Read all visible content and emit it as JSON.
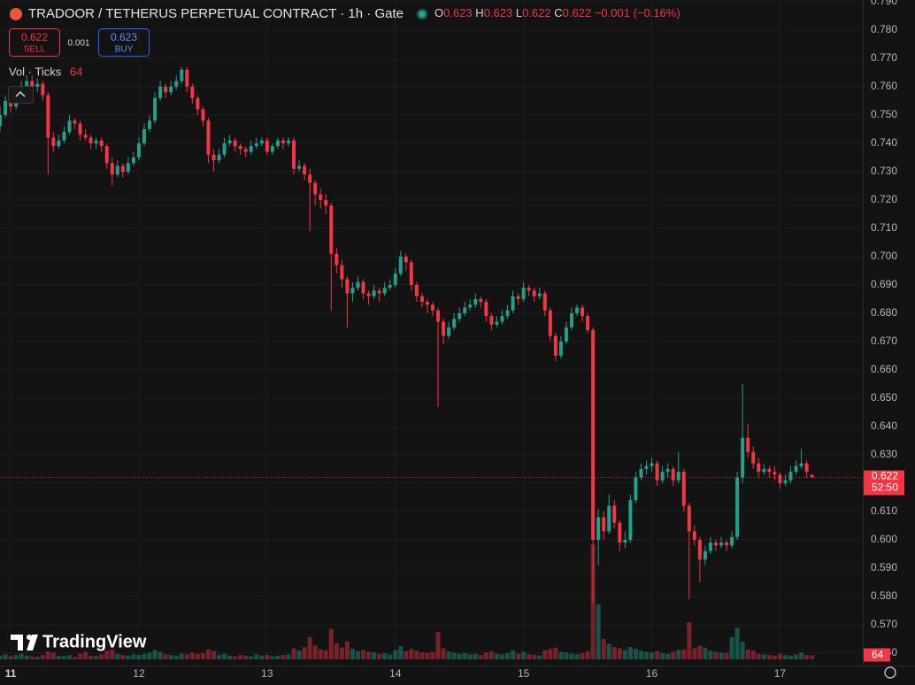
{
  "chart_data": {
    "type": "candlestick",
    "title": "TRADOOR / TETHERUS PERPETUAL CONTRACT · 1h · Gate",
    "legend_letters": [
      "O",
      "H",
      "L",
      "C"
    ],
    "change": "−0.001 (−0.16%)",
    "sell_price": 0.622,
    "sell_label": "SELL",
    "spread": 0.001,
    "buy_price": 0.623,
    "buy_label": "BUY",
    "volume_title": "Vol · Ticks",
    "brand": "TradingView",
    "last_price": 0.622,
    "countdown": "52:50",
    "up_color": "#22a08c",
    "down_color": "#f23645",
    "grid": true,
    "xlim": [
      -2,
      159.5
    ],
    "xticks": [
      {
        "value": 0,
        "label": "11"
      },
      {
        "value": 24,
        "label": "12"
      },
      {
        "value": 48,
        "label": "13"
      },
      {
        "value": 72,
        "label": "14"
      },
      {
        "value": 96,
        "label": "15"
      },
      {
        "value": 120,
        "label": "16"
      },
      {
        "value": 144,
        "label": "17"
      }
    ],
    "ylim": [
      0.5556,
      0.7906
    ],
    "yticks": [
      {
        "value": 0.56,
        "label": "0.560"
      },
      {
        "value": 0.57,
        "label": "0.570"
      },
      {
        "value": 0.58,
        "label": "0.580"
      },
      {
        "value": 0.59,
        "label": "0.590"
      },
      {
        "value": 0.6,
        "label": "0.600"
      },
      {
        "value": 0.61,
        "label": "0.610"
      },
      {
        "value": 0.62,
        "label": "0.620"
      },
      {
        "value": 0.63,
        "label": "0.630"
      },
      {
        "value": 0.64,
        "label": "0.640"
      },
      {
        "value": 0.65,
        "label": "0.650"
      },
      {
        "value": 0.66,
        "label": "0.660"
      },
      {
        "value": 0.67,
        "label": "0.670"
      },
      {
        "value": 0.68,
        "label": "0.680"
      },
      {
        "value": 0.69,
        "label": "0.690"
      },
      {
        "value": 0.7,
        "label": "0.700"
      },
      {
        "value": 0.71,
        "label": "0.710"
      },
      {
        "value": 0.72,
        "label": "0.720"
      },
      {
        "value": 0.73,
        "label": "0.730"
      },
      {
        "value": 0.74,
        "label": "0.740"
      },
      {
        "value": 0.75,
        "label": "0.750"
      },
      {
        "value": 0.76,
        "label": "0.760"
      },
      {
        "value": 0.77,
        "label": "0.770"
      },
      {
        "value": 0.78,
        "label": "0.780"
      },
      {
        "value": 0.79,
        "label": "0.790"
      }
    ],
    "y2lim": [
      0,
      2000
    ],
    "x": [
      -2,
      -1,
      0,
      1,
      2,
      3,
      4,
      5,
      6,
      7,
      8,
      9,
      10,
      11,
      12,
      13,
      14,
      15,
      16,
      17,
      18,
      19,
      20,
      21,
      22,
      23,
      24,
      25,
      26,
      27,
      28,
      29,
      30,
      31,
      32,
      33,
      34,
      35,
      36,
      37,
      38,
      39,
      40,
      41,
      42,
      43,
      44,
      45,
      46,
      47,
      48,
      49,
      50,
      51,
      52,
      53,
      54,
      55,
      56,
      57,
      58,
      59,
      60,
      61,
      62,
      63,
      64,
      65,
      66,
      67,
      68,
      69,
      70,
      71,
      72,
      73,
      74,
      75,
      76,
      77,
      78,
      79,
      80,
      81,
      82,
      83,
      84,
      85,
      86,
      87,
      88,
      89,
      90,
      91,
      92,
      93,
      94,
      95,
      96,
      97,
      98,
      99,
      100,
      101,
      102,
      103,
      104,
      105,
      106,
      107,
      108,
      109,
      110,
      111,
      112,
      113,
      114,
      115,
      116,
      117,
      118,
      119,
      120,
      121,
      122,
      123,
      124,
      125,
      126,
      127,
      128,
      129,
      130,
      131,
      132,
      133,
      134,
      135,
      136,
      137,
      138,
      139,
      140,
      141,
      142,
      143,
      144,
      145,
      146,
      147,
      148,
      149,
      150
    ],
    "candles": [
      [
        0.746,
        0.753,
        0.744,
        0.75
      ],
      [
        0.75,
        0.757,
        0.749,
        0.755
      ],
      [
        0.755,
        0.758,
        0.751,
        0.753
      ],
      [
        0.753,
        0.76,
        0.752,
        0.758
      ],
      [
        0.758,
        0.762,
        0.756,
        0.76
      ],
      [
        0.76,
        0.764,
        0.758,
        0.762
      ],
      [
        0.762,
        0.764,
        0.758,
        0.76
      ],
      [
        0.76,
        0.763,
        0.758,
        0.761
      ],
      [
        0.761,
        0.762,
        0.755,
        0.757
      ],
      [
        0.757,
        0.758,
        0.729,
        0.742
      ],
      [
        0.742,
        0.744,
        0.737,
        0.739
      ],
      [
        0.739,
        0.743,
        0.738,
        0.741
      ],
      [
        0.741,
        0.746,
        0.74,
        0.744
      ],
      [
        0.744,
        0.75,
        0.743,
        0.748
      ],
      [
        0.748,
        0.749,
        0.745,
        0.747
      ],
      [
        0.747,
        0.748,
        0.741,
        0.743
      ],
      [
        0.743,
        0.745,
        0.741,
        0.742
      ],
      [
        0.742,
        0.743,
        0.738,
        0.74
      ],
      [
        0.74,
        0.742,
        0.738,
        0.741
      ],
      [
        0.741,
        0.742,
        0.737,
        0.739
      ],
      [
        0.739,
        0.74,
        0.731,
        0.733
      ],
      [
        0.733,
        0.735,
        0.725,
        0.729
      ],
      [
        0.729,
        0.734,
        0.728,
        0.732
      ],
      [
        0.732,
        0.733,
        0.728,
        0.73
      ],
      [
        0.73,
        0.735,
        0.729,
        0.733
      ],
      [
        0.733,
        0.737,
        0.732,
        0.735
      ],
      [
        0.735,
        0.742,
        0.734,
        0.74
      ],
      [
        0.74,
        0.747,
        0.739,
        0.745
      ],
      [
        0.745,
        0.75,
        0.744,
        0.748
      ],
      [
        0.748,
        0.758,
        0.747,
        0.756
      ],
      [
        0.756,
        0.762,
        0.755,
        0.76
      ],
      [
        0.76,
        0.761,
        0.756,
        0.758
      ],
      [
        0.758,
        0.762,
        0.757,
        0.76
      ],
      [
        0.76,
        0.764,
        0.759,
        0.762
      ],
      [
        0.762,
        0.767,
        0.761,
        0.766
      ],
      [
        0.766,
        0.767,
        0.758,
        0.76
      ],
      [
        0.76,
        0.761,
        0.754,
        0.756
      ],
      [
        0.756,
        0.757,
        0.75,
        0.752
      ],
      [
        0.752,
        0.753,
        0.746,
        0.748
      ],
      [
        0.748,
        0.749,
        0.733,
        0.736
      ],
      [
        0.736,
        0.738,
        0.73,
        0.734
      ],
      [
        0.734,
        0.738,
        0.733,
        0.736
      ],
      [
        0.736,
        0.742,
        0.735,
        0.74
      ],
      [
        0.74,
        0.743,
        0.739,
        0.741
      ],
      [
        0.741,
        0.742,
        0.737,
        0.739
      ],
      [
        0.739,
        0.74,
        0.736,
        0.738
      ],
      [
        0.738,
        0.739,
        0.735,
        0.737
      ],
      [
        0.737,
        0.741,
        0.736,
        0.739
      ],
      [
        0.739,
        0.742,
        0.738,
        0.74
      ],
      [
        0.74,
        0.742,
        0.739,
        0.741
      ],
      [
        0.741,
        0.742,
        0.736,
        0.737
      ],
      [
        0.737,
        0.74,
        0.736,
        0.739
      ],
      [
        0.739,
        0.742,
        0.738,
        0.741
      ],
      [
        0.741,
        0.742,
        0.738,
        0.74
      ],
      [
        0.74,
        0.742,
        0.739,
        0.741
      ],
      [
        0.741,
        0.742,
        0.729,
        0.731
      ],
      [
        0.731,
        0.734,
        0.73,
        0.732
      ],
      [
        0.732,
        0.733,
        0.727,
        0.729
      ],
      [
        0.729,
        0.731,
        0.709,
        0.726
      ],
      [
        0.726,
        0.727,
        0.718,
        0.722
      ],
      [
        0.722,
        0.724,
        0.717,
        0.72
      ],
      [
        0.72,
        0.722,
        0.715,
        0.718
      ],
      [
        0.718,
        0.719,
        0.681,
        0.701
      ],
      [
        0.701,
        0.703,
        0.694,
        0.697
      ],
      [
        0.697,
        0.699,
        0.689,
        0.692
      ],
      [
        0.692,
        0.693,
        0.675,
        0.687
      ],
      [
        0.687,
        0.691,
        0.684,
        0.689
      ],
      [
        0.689,
        0.693,
        0.688,
        0.691
      ],
      [
        0.691,
        0.692,
        0.685,
        0.687
      ],
      [
        0.687,
        0.688,
        0.683,
        0.686
      ],
      [
        0.686,
        0.69,
        0.685,
        0.688
      ],
      [
        0.688,
        0.689,
        0.684,
        0.687
      ],
      [
        0.687,
        0.691,
        0.686,
        0.689
      ],
      [
        0.689,
        0.692,
        0.688,
        0.69
      ],
      [
        0.69,
        0.696,
        0.689,
        0.694
      ],
      [
        0.694,
        0.702,
        0.693,
        0.7
      ],
      [
        0.7,
        0.701,
        0.695,
        0.698
      ],
      [
        0.698,
        0.699,
        0.688,
        0.69
      ],
      [
        0.69,
        0.691,
        0.684,
        0.686
      ],
      [
        0.686,
        0.687,
        0.682,
        0.684
      ],
      [
        0.684,
        0.685,
        0.68,
        0.683
      ],
      [
        0.683,
        0.684,
        0.679,
        0.681
      ],
      [
        0.681,
        0.682,
        0.647,
        0.677
      ],
      [
        0.677,
        0.678,
        0.669,
        0.672
      ],
      [
        0.672,
        0.677,
        0.671,
        0.675
      ],
      [
        0.675,
        0.68,
        0.674,
        0.678
      ],
      [
        0.678,
        0.682,
        0.677,
        0.68
      ],
      [
        0.68,
        0.684,
        0.679,
        0.682
      ],
      [
        0.682,
        0.685,
        0.681,
        0.683
      ],
      [
        0.683,
        0.687,
        0.682,
        0.685
      ],
      [
        0.685,
        0.686,
        0.682,
        0.684
      ],
      [
        0.684,
        0.685,
        0.677,
        0.679
      ],
      [
        0.679,
        0.68,
        0.674,
        0.676
      ],
      [
        0.676,
        0.679,
        0.675,
        0.677
      ],
      [
        0.677,
        0.681,
        0.676,
        0.679
      ],
      [
        0.679,
        0.683,
        0.678,
        0.681
      ],
      [
        0.681,
        0.688,
        0.68,
        0.686
      ],
      [
        0.686,
        0.687,
        0.683,
        0.685
      ],
      [
        0.685,
        0.691,
        0.684,
        0.689
      ],
      [
        0.689,
        0.69,
        0.686,
        0.688
      ],
      [
        0.688,
        0.689,
        0.684,
        0.686
      ],
      [
        0.686,
        0.689,
        0.685,
        0.687
      ],
      [
        0.687,
        0.688,
        0.679,
        0.681
      ],
      [
        0.681,
        0.682,
        0.67,
        0.672
      ],
      [
        0.672,
        0.673,
        0.663,
        0.665
      ],
      [
        0.665,
        0.672,
        0.664,
        0.67
      ],
      [
        0.67,
        0.677,
        0.669,
        0.675
      ],
      [
        0.675,
        0.682,
        0.674,
        0.68
      ],
      [
        0.68,
        0.683,
        0.679,
        0.682
      ],
      [
        0.682,
        0.683,
        0.677,
        0.679
      ],
      [
        0.679,
        0.68,
        0.673,
        0.674
      ],
      [
        0.674,
        0.675,
        0.578,
        0.6
      ],
      [
        0.6,
        0.611,
        0.591,
        0.608
      ],
      [
        0.608,
        0.61,
        0.6,
        0.603
      ],
      [
        0.603,
        0.616,
        0.602,
        0.612
      ],
      [
        0.612,
        0.614,
        0.604,
        0.606
      ],
      [
        0.606,
        0.607,
        0.596,
        0.599
      ],
      [
        0.599,
        0.603,
        0.597,
        0.6
      ],
      [
        0.6,
        0.616,
        0.599,
        0.614
      ],
      [
        0.614,
        0.624,
        0.613,
        0.622
      ],
      [
        0.622,
        0.627,
        0.621,
        0.625
      ],
      [
        0.625,
        0.628,
        0.623,
        0.626
      ],
      [
        0.626,
        0.629,
        0.624,
        0.627
      ],
      [
        0.627,
        0.628,
        0.619,
        0.621
      ],
      [
        0.621,
        0.626,
        0.62,
        0.624
      ],
      [
        0.624,
        0.627,
        0.622,
        0.625
      ],
      [
        0.625,
        0.626,
        0.619,
        0.621
      ],
      [
        0.621,
        0.631,
        0.62,
        0.624
      ],
      [
        0.624,
        0.625,
        0.61,
        0.612
      ],
      [
        0.612,
        0.613,
        0.579,
        0.603
      ],
      [
        0.603,
        0.605,
        0.598,
        0.6
      ],
      [
        0.6,
        0.601,
        0.585,
        0.593
      ],
      [
        0.593,
        0.598,
        0.591,
        0.596
      ],
      [
        0.596,
        0.601,
        0.595,
        0.599
      ],
      [
        0.599,
        0.6,
        0.596,
        0.598
      ],
      [
        0.598,
        0.601,
        0.597,
        0.599
      ],
      [
        0.599,
        0.6,
        0.596,
        0.598
      ],
      [
        0.598,
        0.603,
        0.597,
        0.601
      ],
      [
        0.601,
        0.624,
        0.6,
        0.622
      ],
      [
        0.622,
        0.655,
        0.62,
        0.636
      ],
      [
        0.636,
        0.641,
        0.629,
        0.631
      ],
      [
        0.631,
        0.633,
        0.625,
        0.627
      ],
      [
        0.627,
        0.629,
        0.622,
        0.624
      ],
      [
        0.624,
        0.627,
        0.623,
        0.625
      ],
      [
        0.625,
        0.626,
        0.622,
        0.624
      ],
      [
        0.624,
        0.626,
        0.621,
        0.623
      ],
      [
        0.623,
        0.624,
        0.618,
        0.62
      ],
      [
        0.62,
        0.623,
        0.619,
        0.621
      ],
      [
        0.621,
        0.626,
        0.62,
        0.624
      ],
      [
        0.624,
        0.628,
        0.623,
        0.626
      ],
      [
        0.626,
        0.632,
        0.625,
        0.627
      ],
      [
        0.627,
        0.628,
        0.622,
        0.624
      ],
      [
        0.623,
        0.623,
        0.622,
        0.622
      ]
    ],
    "volume": [
      60,
      80,
      50,
      70,
      90,
      60,
      50,
      40,
      70,
      130,
      110,
      60,
      50,
      70,
      40,
      90,
      120,
      60,
      50,
      80,
      140,
      160,
      90,
      70,
      60,
      80,
      70,
      90,
      110,
      150,
      120,
      80,
      70,
      60,
      90,
      80,
      110,
      90,
      100,
      160,
      130,
      70,
      90,
      60,
      50,
      70,
      60,
      50,
      80,
      60,
      70,
      50,
      60,
      70,
      80,
      180,
      140,
      200,
      360,
      220,
      160,
      150,
      490,
      260,
      190,
      290,
      170,
      130,
      150,
      120,
      110,
      90,
      100,
      80,
      150,
      210,
      130,
      170,
      140,
      110,
      100,
      120,
      440,
      180,
      130,
      110,
      90,
      100,
      80,
      90,
      70,
      110,
      130,
      90,
      80,
      100,
      140,
      90,
      120,
      80,
      70,
      60,
      150,
      170,
      190,
      120,
      110,
      90,
      80,
      100,
      130,
      1850,
      890,
      330,
      250,
      200,
      180,
      150,
      200,
      170,
      140,
      120,
      110,
      130,
      100,
      90,
      120,
      150,
      160,
      600,
      180,
      220,
      190,
      140,
      120,
      110,
      100,
      360,
      510,
      280,
      160,
      140,
      90,
      80,
      70,
      60,
      90,
      70,
      60,
      80,
      110,
      70,
      64
    ]
  }
}
